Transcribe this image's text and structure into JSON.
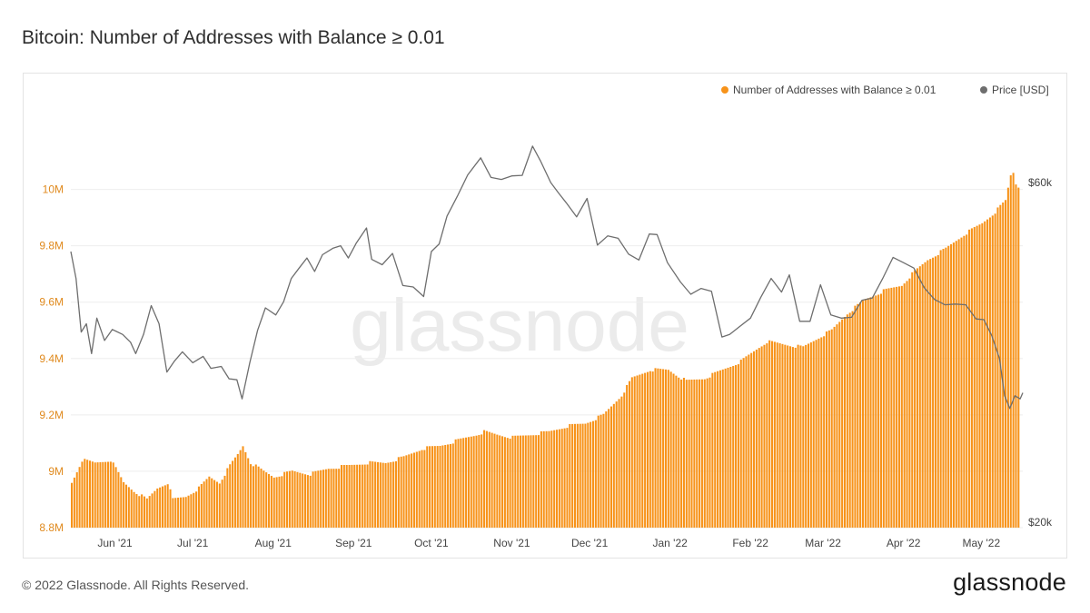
{
  "page": {
    "title": "Bitcoin: Number of Addresses with Balance ≥ 0.01",
    "copyright": "© 2022 Glassnode. All Rights Reserved.",
    "logo": "glassnode",
    "watermark": "glassnode"
  },
  "colors": {
    "bars": "#f7931a",
    "price": "#6e6e6e",
    "left_axis_text": "#e08a1e",
    "axis_text": "#444444",
    "grid": "#eeeeee",
    "watermark": "#ebebeb"
  },
  "chart_data": {
    "type": "bar",
    "title": "Bitcoin: Number of Addresses with Balance ≥ 0.01",
    "legend": {
      "placement": "top-right",
      "entries": [
        {
          "name": "Number of Addresses with Balance ≥ 0.01",
          "color": "#f7931a"
        },
        {
          "name": "Price [USD]",
          "color": "#6e6e6e"
        }
      ]
    },
    "grid": true,
    "x_range": [
      "2021-05-15",
      "2022-05-17"
    ],
    "x_ticks": [
      {
        "date": "2021-06-01",
        "label": "Jun '21"
      },
      {
        "date": "2021-07-01",
        "label": "Jul '21"
      },
      {
        "date": "2021-08-01",
        "label": "Aug '21"
      },
      {
        "date": "2021-09-01",
        "label": "Sep '21"
      },
      {
        "date": "2021-10-01",
        "label": "Oct '21"
      },
      {
        "date": "2021-11-01",
        "label": "Nov '21"
      },
      {
        "date": "2021-12-01",
        "label": "Dec '21"
      },
      {
        "date": "2022-01-01",
        "label": "Jan '22"
      },
      {
        "date": "2022-02-01",
        "label": "Feb '22"
      },
      {
        "date": "2022-03-01",
        "label": "Mar '22"
      },
      {
        "date": "2022-04-01",
        "label": "Apr '22"
      },
      {
        "date": "2022-05-01",
        "label": "May '22"
      }
    ],
    "y_left": {
      "range": [
        8800000,
        10250000
      ],
      "ticks": [
        {
          "value": 8800000,
          "label": "8.8M"
        },
        {
          "value": 9000000,
          "label": "9M"
        },
        {
          "value": 9200000,
          "label": "9.2M"
        },
        {
          "value": 9400000,
          "label": "9.4M"
        },
        {
          "value": 9600000,
          "label": "9.6M"
        },
        {
          "value": 9800000,
          "label": "9.8M"
        },
        {
          "value": 10000000,
          "label": "10M"
        }
      ]
    },
    "y_right": {
      "scale": "log",
      "ticks": [
        {
          "value": 20000,
          "label": "$20k"
        },
        {
          "value": 60000,
          "label": "$60k"
        }
      ]
    },
    "series": [
      {
        "name": "Number of Addresses with Balance ≥ 0.01",
        "kind": "bar",
        "axis": "left",
        "points": [
          [
            "2021-05-15",
            8960000
          ],
          [
            "2021-05-19",
            9040000
          ],
          [
            "2021-05-24",
            9030000
          ],
          [
            "2021-05-30",
            9040000
          ],
          [
            "2021-06-01",
            9010000
          ],
          [
            "2021-06-04",
            8960000
          ],
          [
            "2021-06-08",
            8930000
          ],
          [
            "2021-06-13",
            8900000
          ],
          [
            "2021-06-17",
            8940000
          ],
          [
            "2021-06-21",
            8960000
          ],
          [
            "2021-06-23",
            8900000
          ],
          [
            "2021-06-28",
            8910000
          ],
          [
            "2021-07-03",
            8940000
          ],
          [
            "2021-07-07",
            8980000
          ],
          [
            "2021-07-11",
            8960000
          ],
          [
            "2021-07-15",
            9020000
          ],
          [
            "2021-07-18",
            9060000
          ],
          [
            "2021-07-20",
            9090000
          ],
          [
            "2021-07-23",
            9030000
          ],
          [
            "2021-07-28",
            9000000
          ],
          [
            "2021-08-01",
            8980000
          ],
          [
            "2021-08-08",
            9000000
          ],
          [
            "2021-08-15",
            8990000
          ],
          [
            "2021-08-22",
            9010000
          ],
          [
            "2021-08-30",
            9020000
          ],
          [
            "2021-09-06",
            9030000
          ],
          [
            "2021-09-13",
            9030000
          ],
          [
            "2021-09-20",
            9050000
          ],
          [
            "2021-09-27",
            9080000
          ],
          [
            "2021-10-04",
            9090000
          ],
          [
            "2021-10-11",
            9110000
          ],
          [
            "2021-10-18",
            9130000
          ],
          [
            "2021-10-21",
            9140000
          ],
          [
            "2021-10-26",
            9130000
          ],
          [
            "2021-11-01",
            9120000
          ],
          [
            "2021-11-08",
            9130000
          ],
          [
            "2021-11-15",
            9140000
          ],
          [
            "2021-11-22",
            9160000
          ],
          [
            "2021-11-29",
            9170000
          ],
          [
            "2021-12-06",
            9200000
          ],
          [
            "2021-12-13",
            9270000
          ],
          [
            "2021-12-17",
            9330000
          ],
          [
            "2021-12-24",
            9360000
          ],
          [
            "2021-12-31",
            9360000
          ],
          [
            "2022-01-07",
            9320000
          ],
          [
            "2022-01-14",
            9330000
          ],
          [
            "2022-01-21",
            9360000
          ],
          [
            "2022-01-28",
            9390000
          ],
          [
            "2022-02-04",
            9440000
          ],
          [
            "2022-02-07",
            9460000
          ],
          [
            "2022-02-14",
            9450000
          ],
          [
            "2022-02-21",
            9440000
          ],
          [
            "2022-02-28",
            9480000
          ],
          [
            "2022-03-04",
            9500000
          ],
          [
            "2022-03-10",
            9560000
          ],
          [
            "2022-03-17",
            9610000
          ],
          [
            "2022-03-24",
            9640000
          ],
          [
            "2022-03-31",
            9660000
          ],
          [
            "2022-04-04",
            9700000
          ],
          [
            "2022-04-10",
            9750000
          ],
          [
            "2022-04-17",
            9790000
          ],
          [
            "2022-04-24",
            9840000
          ],
          [
            "2022-05-01",
            9880000
          ],
          [
            "2022-05-06",
            9920000
          ],
          [
            "2022-05-10",
            9960000
          ],
          [
            "2022-05-12",
            10050000
          ],
          [
            "2022-05-13",
            10060000
          ],
          [
            "2022-05-14",
            10020000
          ],
          [
            "2022-05-15",
            10010000
          ]
        ]
      },
      {
        "name": "Price [USD]",
        "kind": "line",
        "axis": "right",
        "points": [
          [
            "2021-05-15",
            48000
          ],
          [
            "2021-05-17",
            44000
          ],
          [
            "2021-05-19",
            37000
          ],
          [
            "2021-05-21",
            38000
          ],
          [
            "2021-05-23",
            34500
          ],
          [
            "2021-05-25",
            38700
          ],
          [
            "2021-05-28",
            36000
          ],
          [
            "2021-05-31",
            37300
          ],
          [
            "2021-06-04",
            36700
          ],
          [
            "2021-06-07",
            35800
          ],
          [
            "2021-06-09",
            34500
          ],
          [
            "2021-06-12",
            36700
          ],
          [
            "2021-06-15",
            40300
          ],
          [
            "2021-06-18",
            38000
          ],
          [
            "2021-06-21",
            32500
          ],
          [
            "2021-06-24",
            33700
          ],
          [
            "2021-06-27",
            34700
          ],
          [
            "2021-07-01",
            33500
          ],
          [
            "2021-07-05",
            34200
          ],
          [
            "2021-07-08",
            32900
          ],
          [
            "2021-07-12",
            33100
          ],
          [
            "2021-07-15",
            31800
          ],
          [
            "2021-07-18",
            31700
          ],
          [
            "2021-07-20",
            29800
          ],
          [
            "2021-07-23",
            33500
          ],
          [
            "2021-07-26",
            37200
          ],
          [
            "2021-07-29",
            40000
          ],
          [
            "2021-08-02",
            39100
          ],
          [
            "2021-08-05",
            40800
          ],
          [
            "2021-08-08",
            44000
          ],
          [
            "2021-08-11",
            45500
          ],
          [
            "2021-08-14",
            47000
          ],
          [
            "2021-08-17",
            45000
          ],
          [
            "2021-08-20",
            47500
          ],
          [
            "2021-08-24",
            48500
          ],
          [
            "2021-08-27",
            48900
          ],
          [
            "2021-08-30",
            47000
          ],
          [
            "2021-09-02",
            49300
          ],
          [
            "2021-09-06",
            51800
          ],
          [
            "2021-09-08",
            46800
          ],
          [
            "2021-09-12",
            46000
          ],
          [
            "2021-09-16",
            47700
          ],
          [
            "2021-09-20",
            43000
          ],
          [
            "2021-09-24",
            42800
          ],
          [
            "2021-09-28",
            41500
          ],
          [
            "2021-10-01",
            48000
          ],
          [
            "2021-10-04",
            49200
          ],
          [
            "2021-10-07",
            53800
          ],
          [
            "2021-10-11",
            57400
          ],
          [
            "2021-10-15",
            61500
          ],
          [
            "2021-10-20",
            65000
          ],
          [
            "2021-10-24",
            61000
          ],
          [
            "2021-10-28",
            60600
          ],
          [
            "2021-11-01",
            61300
          ],
          [
            "2021-11-05",
            61400
          ],
          [
            "2021-11-09",
            67500
          ],
          [
            "2021-11-12",
            64400
          ],
          [
            "2021-11-16",
            60000
          ],
          [
            "2021-11-19",
            58000
          ],
          [
            "2021-11-22",
            56200
          ],
          [
            "2021-11-26",
            53700
          ],
          [
            "2021-11-30",
            57000
          ],
          [
            "2021-12-04",
            49000
          ],
          [
            "2021-12-08",
            50500
          ],
          [
            "2021-12-12",
            50100
          ],
          [
            "2021-12-16",
            47600
          ],
          [
            "2021-12-20",
            46700
          ],
          [
            "2021-12-24",
            50800
          ],
          [
            "2021-12-27",
            50700
          ],
          [
            "2021-12-31",
            46300
          ],
          [
            "2022-01-05",
            43500
          ],
          [
            "2022-01-09",
            41800
          ],
          [
            "2022-01-13",
            42600
          ],
          [
            "2022-01-17",
            42200
          ],
          [
            "2022-01-21",
            36400
          ],
          [
            "2022-01-24",
            36700
          ],
          [
            "2022-01-28",
            37700
          ],
          [
            "2022-02-01",
            38700
          ],
          [
            "2022-02-05",
            41400
          ],
          [
            "2022-02-09",
            44000
          ],
          [
            "2022-02-13",
            42100
          ],
          [
            "2022-02-16",
            44500
          ],
          [
            "2022-02-20",
            38300
          ],
          [
            "2022-02-24",
            38300
          ],
          [
            "2022-02-28",
            43100
          ],
          [
            "2022-03-04",
            39100
          ],
          [
            "2022-03-08",
            38700
          ],
          [
            "2022-03-12",
            38800
          ],
          [
            "2022-03-16",
            41000
          ],
          [
            "2022-03-20",
            41300
          ],
          [
            "2022-03-24",
            44000
          ],
          [
            "2022-03-28",
            47100
          ],
          [
            "2022-04-01",
            46300
          ],
          [
            "2022-04-05",
            45500
          ],
          [
            "2022-04-09",
            42700
          ],
          [
            "2022-04-13",
            41100
          ],
          [
            "2022-04-17",
            40400
          ],
          [
            "2022-04-21",
            40500
          ],
          [
            "2022-04-25",
            40400
          ],
          [
            "2022-04-29",
            38600
          ],
          [
            "2022-05-02",
            38500
          ],
          [
            "2022-05-05",
            36600
          ],
          [
            "2022-05-08",
            34000
          ],
          [
            "2022-05-10",
            30100
          ],
          [
            "2022-05-12",
            28900
          ],
          [
            "2022-05-14",
            30100
          ],
          [
            "2022-05-16",
            29800
          ],
          [
            "2022-05-17",
            30400
          ]
        ]
      }
    ]
  }
}
